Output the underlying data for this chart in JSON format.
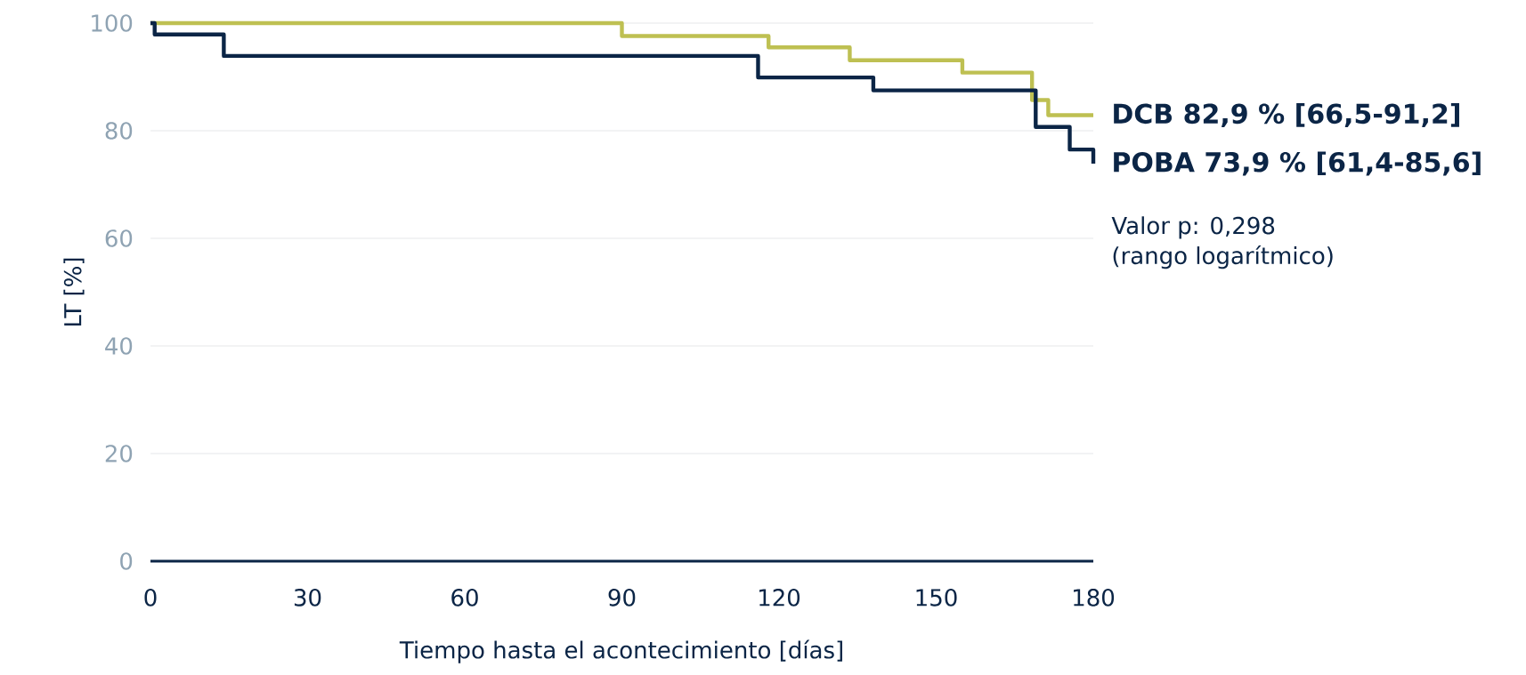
{
  "chart_data": {
    "type": "step",
    "xlabel": "Tiempo hasta el acontecimiento [días]",
    "ylabel": "LT [%]",
    "xlim": [
      0,
      180
    ],
    "xticks": [
      0,
      30,
      60,
      90,
      120,
      150,
      180
    ],
    "ylim": [
      0,
      100
    ],
    "yticks": [
      0,
      20,
      40,
      60,
      80,
      100
    ],
    "grid": "y",
    "series": [
      {
        "name": "**DCB 82,9 % [66,5-91,2]**",
        "color": "#bec052",
        "x": [
          0,
          90,
          118,
          133.5,
          155,
          168.3,
          171.4,
          180
        ],
        "values": [
          100,
          97.6,
          95.5,
          93.1,
          90.8,
          85.7,
          82.9,
          82.9
        ]
      },
      {
        "name": "**POBA 73,9 % [61,4-85,6]**",
        "color": "#0b2546",
        "x": [
          0,
          0.8,
          14,
          116,
          138,
          169,
          175.5,
          180
        ],
        "values": [
          100,
          97.9,
          93.9,
          89.9,
          87.5,
          80.7,
          76.5,
          73.9
        ]
      }
    ],
    "annotations": [
      "Valor p: 0,298",
      "(rango logarítmico)"
    ]
  }
}
